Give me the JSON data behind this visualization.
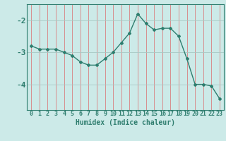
{
  "x": [
    0,
    1,
    2,
    3,
    4,
    5,
    6,
    7,
    8,
    9,
    10,
    11,
    12,
    13,
    14,
    15,
    16,
    17,
    18,
    19,
    20,
    21,
    22,
    23
  ],
  "y": [
    -2.8,
    -2.9,
    -2.9,
    -2.9,
    -3.0,
    -3.1,
    -3.3,
    -3.4,
    -3.4,
    -3.2,
    -3.0,
    -2.7,
    -2.4,
    -1.8,
    -2.1,
    -2.3,
    -2.25,
    -2.25,
    -2.5,
    -3.2,
    -4.0,
    -4.0,
    -4.05,
    -4.45
  ],
  "line_color": "#2e7d6e",
  "marker": "D",
  "marker_size": 2,
  "bg_color": "#cceae8",
  "vgrid_color": "#d98080",
  "hgrid_color": "#a8c8c4",
  "xlabel": "Humidex (Indice chaleur)",
  "yticks": [
    -4,
    -3,
    -2
  ],
  "ylim": [
    -4.8,
    -1.5
  ],
  "xlim": [
    -0.5,
    23.5
  ],
  "xlabel_fontsize": 7,
  "tick_fontsize": 7
}
